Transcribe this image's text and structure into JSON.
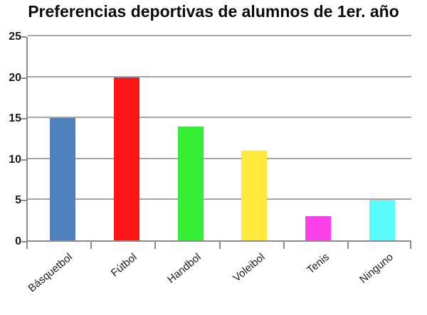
{
  "title": "Preferencias deportivas de alumnos de 1er. año",
  "chart_data": {
    "type": "bar",
    "title": "Preferencias deportivas de alumnos de 1er. año",
    "categories": [
      "Básquetbol",
      "Fútbol",
      "Handbol",
      "Voleibol",
      "Tenis",
      "Ninguno"
    ],
    "values": [
      15,
      20,
      14,
      11,
      3,
      5
    ],
    "bar_colors": [
      "#4F81BD",
      "#FE1616",
      "#33EE33",
      "#FFE93C",
      "#FB3FE9",
      "#59FBFB"
    ],
    "xlabel": "",
    "ylabel": "",
    "ylim": [
      0,
      25
    ],
    "yticks": [
      0,
      5,
      10,
      15,
      20,
      25
    ],
    "grid": true,
    "legend": "none",
    "colors": {
      "gridline": "#A6A6A6",
      "axis": "#8C8C8C",
      "tick": "#8C8C8C",
      "text": "#1A1A1A",
      "title_text": "#0D0D0D",
      "background": "#FFFFFF"
    }
  }
}
